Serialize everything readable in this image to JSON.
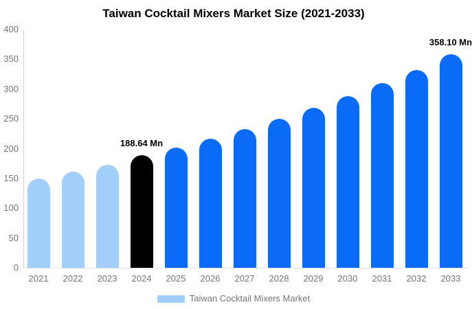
{
  "chart_data": {
    "type": "bar",
    "title": "Taiwan Cocktail Mixers Market Size (2021-2033)",
    "categories": [
      "2021",
      "2022",
      "2023",
      "2024",
      "2025",
      "2026",
      "2027",
      "2028",
      "2029",
      "2030",
      "2031",
      "2032",
      "2033"
    ],
    "series": [
      {
        "name": "Taiwan Cocktail Mixers Market",
        "values": [
          150,
          161,
          173,
          188.64,
          202,
          216.5,
          233,
          250.5,
          269,
          288.5,
          310,
          332.5,
          358.1
        ]
      }
    ],
    "unit": "Mn",
    "xlabel": "",
    "ylabel": "",
    "ylim": [
      0,
      400
    ],
    "yticks": [
      0,
      50,
      100,
      150,
      200,
      250,
      300,
      350,
      400
    ],
    "grid": false,
    "legend_position": "bottom",
    "bar_colors": [
      "#A2CEFA",
      "#A2CEFA",
      "#A2CEFA",
      "#000000",
      "#0A6CF6",
      "#0A6CF6",
      "#0A6CF6",
      "#0A6CF6",
      "#0A6CF6",
      "#0A6CF6",
      "#0A6CF6",
      "#0A6CF6",
      "#0A6CF6"
    ],
    "palette": {
      "historical": "#A2CEFA",
      "base_year": "#000000",
      "forecast": "#0A6CF6",
      "legend_swatch": "#A2CEFA",
      "text": "#757575",
      "title_text": "#000000",
      "axis_line": "#D4D4D4",
      "baseline": "#E3E3E3"
    },
    "annotations": [
      {
        "category": "2024",
        "text": "188.64 Mn"
      },
      {
        "category": "2033",
        "text": "358.10 Mn"
      }
    ]
  }
}
